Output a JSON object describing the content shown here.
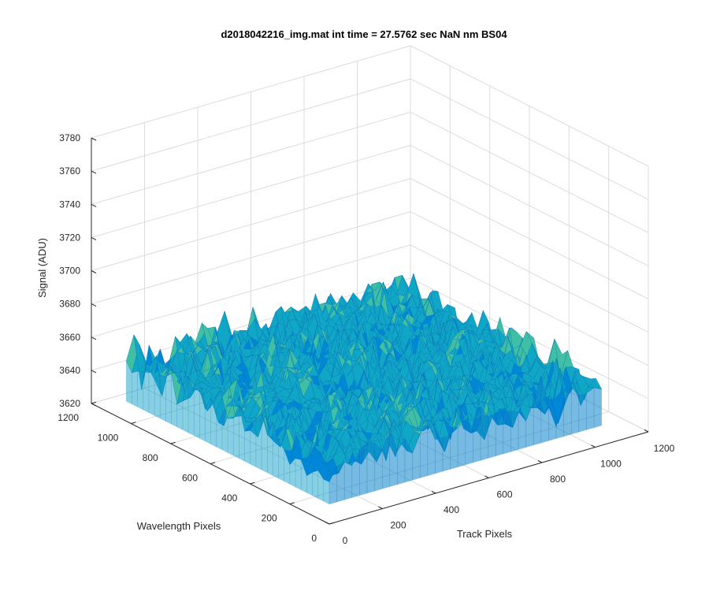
{
  "chart_data": {
    "type": "surface",
    "title": "d2018042216_img.mat int time = 27.5762 sec  NaN nm BS04",
    "xlabel": "Track Pixels",
    "ylabel": "Wavelength Pixels",
    "zlabel": "Signal (ADU)",
    "xlim": [
      0,
      1200
    ],
    "ylim": [
      0,
      1200
    ],
    "zlim": [
      3620,
      3780
    ],
    "x_ticks": [
      "0",
      "200",
      "400",
      "600",
      "800",
      "1000",
      "1200"
    ],
    "y_ticks": [
      "0",
      "200",
      "400",
      "600",
      "800",
      "1000",
      "1200"
    ],
    "z_ticks": [
      "3620",
      "3640",
      "3660",
      "3680",
      "3700",
      "3720",
      "3740",
      "3760",
      "3780"
    ],
    "data_extent": {
      "x": [
        0,
        1024
      ],
      "y": [
        0,
        1024
      ]
    },
    "z_mean": 3655,
    "z_spread": 12,
    "z_min_observed": 3628,
    "z_max_observed": 3722,
    "grid": true,
    "colormap": [
      "#0060bf",
      "#0088d8",
      "#10a6c6",
      "#3fc0a4",
      "#6fd07c"
    ],
    "axis_color": "#262626",
    "grid_color": "#dcdcdc"
  }
}
